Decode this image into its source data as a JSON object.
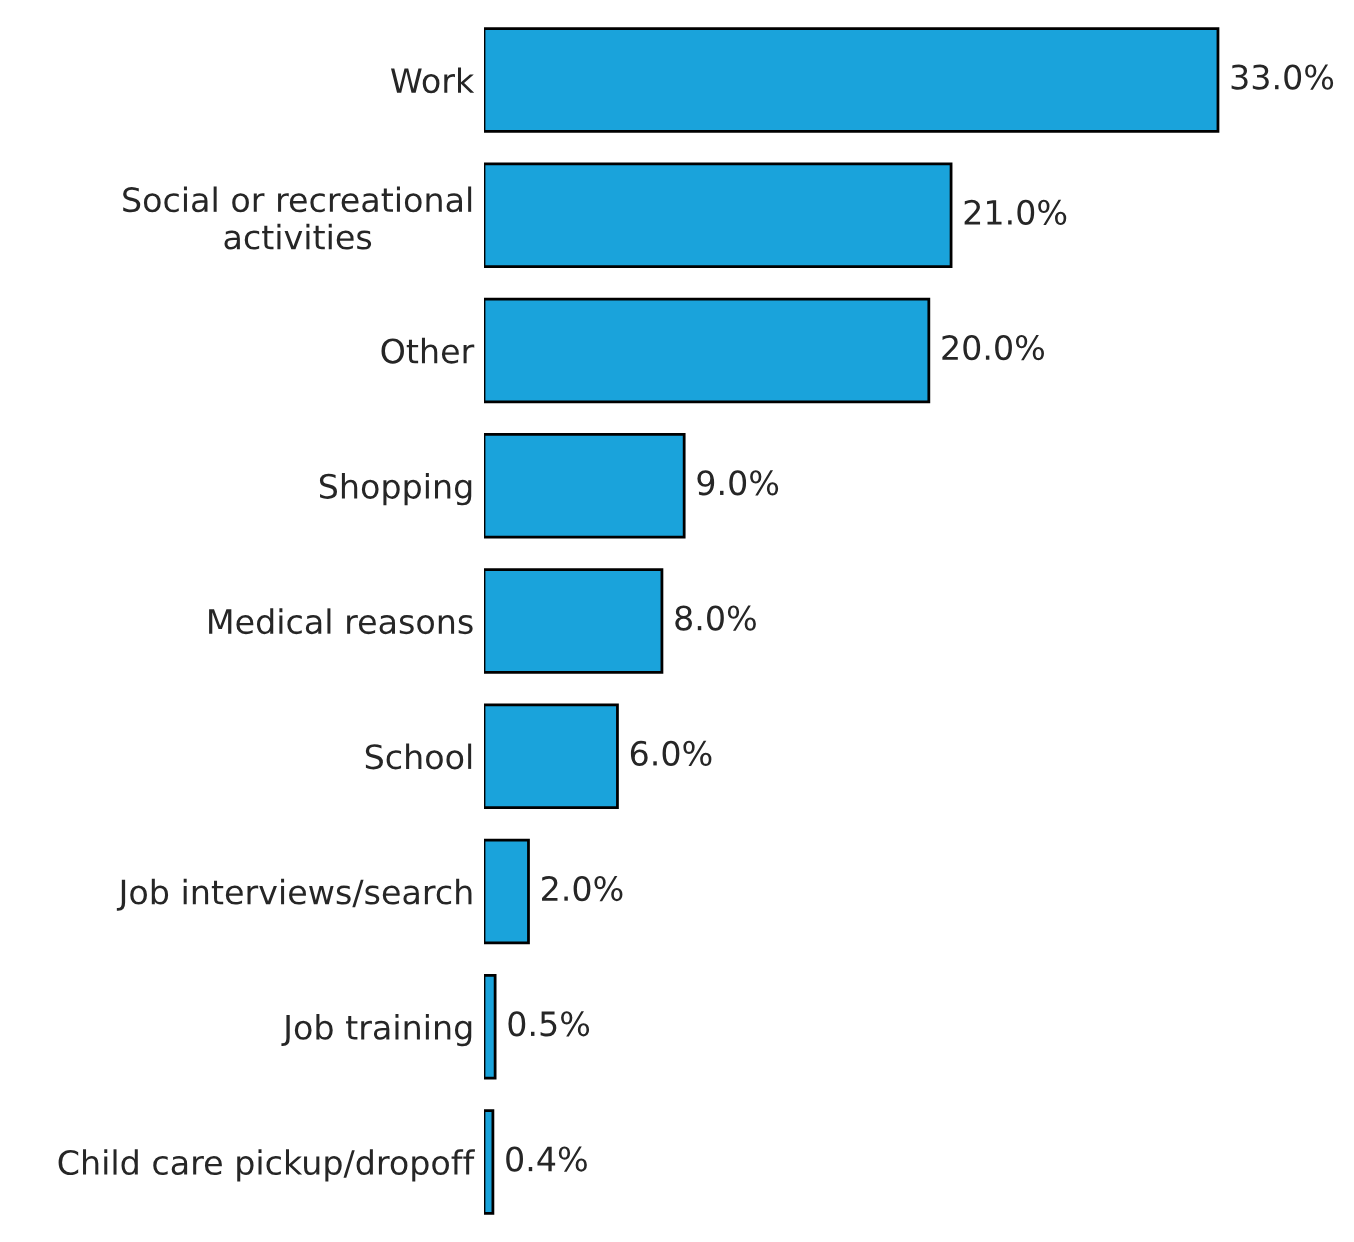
{
  "chart_data": {
    "type": "bar",
    "orientation": "horizontal",
    "categories": [
      "Work",
      "Social or recreational\nactivities",
      "Other",
      "Shopping",
      "Medical reasons",
      "School",
      "Job interviews/search",
      "Job training",
      "Child care pickup/dropoff"
    ],
    "values": [
      33.0,
      21.0,
      20.0,
      9.0,
      8.0,
      6.0,
      2.0,
      0.5,
      0.4
    ],
    "value_labels": [
      "33.0%",
      "21.0%",
      "20.0%",
      "9.0%",
      "8.0%",
      "6.0%",
      "2.0%",
      "0.5%",
      "0.4%"
    ],
    "color": "#1aa3db",
    "grid": false,
    "legend": false
  }
}
